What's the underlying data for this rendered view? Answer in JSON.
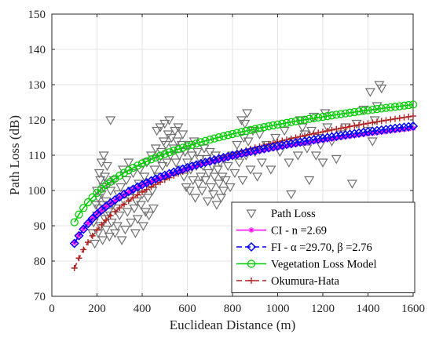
{
  "chart_data": {
    "type": "scatter",
    "xlabel": "Euclidean Distance (m)",
    "ylabel": "Path Loss (dB)",
    "xlim": [
      0,
      1600
    ],
    "ylim": [
      70,
      150
    ],
    "x_ticks": [
      "0",
      "200",
      "400",
      "600",
      "800",
      "1000",
      "1200",
      "1400",
      "1600"
    ],
    "y_ticks": [
      "70",
      "80",
      "90",
      "100",
      "110",
      "120",
      "130",
      "140",
      "150"
    ],
    "grid": true,
    "legend_position": "bottom-right",
    "series": [
      {
        "name": "Path Loss",
        "marker": "triangle-down",
        "color": "#707070",
        "points": [
          [
            180,
            88
          ],
          [
            185,
            91
          ],
          [
            190,
            85
          ],
          [
            195,
            96
          ],
          [
            200,
            93
          ],
          [
            200,
            100
          ],
          [
            205,
            88
          ],
          [
            205,
            98
          ],
          [
            210,
            105
          ],
          [
            210,
            95
          ],
          [
            215,
            103
          ],
          [
            215,
            90
          ],
          [
            220,
            108
          ],
          [
            220,
            99
          ],
          [
            225,
            86
          ],
          [
            225,
            96
          ],
          [
            230,
            110
          ],
          [
            230,
            101
          ],
          [
            235,
            92
          ],
          [
            235,
            104
          ],
          [
            240,
            89
          ],
          [
            240,
            97
          ],
          [
            245,
            107
          ],
          [
            245,
            93
          ],
          [
            250,
            94
          ],
          [
            250,
            102
          ],
          [
            255,
            87
          ],
          [
            260,
            120
          ],
          [
            260,
            100
          ],
          [
            265,
            91
          ],
          [
            270,
            96
          ],
          [
            275,
            103
          ],
          [
            280,
            88
          ],
          [
            285,
            95
          ],
          [
            290,
            90
          ],
          [
            295,
            99
          ],
          [
            300,
            93
          ],
          [
            305,
            101
          ],
          [
            310,
            86
          ],
          [
            315,
            106
          ],
          [
            320,
            97
          ],
          [
            325,
            89
          ],
          [
            330,
            103
          ],
          [
            335,
            94
          ],
          [
            340,
            108
          ],
          [
            345,
            98
          ],
          [
            350,
            91
          ],
          [
            355,
            100
          ],
          [
            360,
            105
          ],
          [
            365,
            95
          ],
          [
            370,
            88
          ],
          [
            375,
            97
          ],
          [
            380,
            92
          ],
          [
            385,
            102
          ],
          [
            390,
            106
          ],
          [
            395,
            96
          ],
          [
            400,
            99
          ],
          [
            405,
            90
          ],
          [
            410,
            104
          ],
          [
            415,
            94
          ],
          [
            420,
            108
          ],
          [
            425,
            98
          ],
          [
            430,
            93
          ],
          [
            435,
            102
          ],
          [
            440,
            110
          ],
          [
            445,
            100
          ],
          [
            450,
            95
          ],
          [
            455,
            106
          ],
          [
            460,
            112
          ],
          [
            465,
            117
          ],
          [
            470,
            104
          ],
          [
            475,
            109
          ],
          [
            480,
            118
          ],
          [
            485,
            111
          ],
          [
            490,
            107
          ],
          [
            495,
            114
          ],
          [
            500,
            119
          ],
          [
            505,
            113
          ],
          [
            510,
            108
          ],
          [
            515,
            116
          ],
          [
            520,
            120
          ],
          [
            525,
            110
          ],
          [
            530,
            115
          ],
          [
            540,
            112
          ],
          [
            545,
            117
          ],
          [
            550,
            108
          ],
          [
            555,
            114
          ],
          [
            560,
            118
          ],
          [
            565,
            110
          ],
          [
            570,
            106
          ],
          [
            575,
            113
          ],
          [
            580,
            116
          ],
          [
            585,
            104
          ],
          [
            590,
            111
          ],
          [
            595,
            101
          ],
          [
            600,
            108
          ],
          [
            605,
            113
          ],
          [
            610,
            100
          ],
          [
            615,
            106
          ],
          [
            620,
            110
          ],
          [
            625,
            103
          ],
          [
            630,
            114
          ],
          [
            635,
            98
          ],
          [
            640,
            107
          ],
          [
            645,
            111
          ],
          [
            650,
            102
          ],
          [
            655,
            109
          ],
          [
            660,
            104
          ],
          [
            665,
            100
          ],
          [
            670,
            107
          ],
          [
            675,
            112
          ],
          [
            680,
            103
          ],
          [
            685,
            109
          ],
          [
            690,
            97
          ],
          [
            695,
            105
          ],
          [
            700,
            111
          ],
          [
            705,
            101
          ],
          [
            710,
            107
          ],
          [
            715,
            99
          ],
          [
            720,
            104
          ],
          [
            725,
            110
          ],
          [
            730,
            96
          ],
          [
            735,
            106
          ],
          [
            740,
            102
          ],
          [
            745,
            108
          ],
          [
            750,
            98
          ],
          [
            755,
            104
          ],
          [
            760,
            100
          ],
          [
            765,
            109
          ],
          [
            770,
            103
          ],
          [
            780,
            107
          ],
          [
            790,
            101
          ],
          [
            800,
            110
          ],
          [
            810,
            105
          ],
          [
            820,
            113
          ],
          [
            830,
            108
          ],
          [
            840,
            120
          ],
          [
            845,
            103
          ],
          [
            850,
            115
          ],
          [
            855,
            119
          ],
          [
            860,
            110
          ],
          [
            865,
            122
          ],
          [
            870,
            114
          ],
          [
            880,
            106
          ],
          [
            890,
            117
          ],
          [
            900,
            111
          ],
          [
            910,
            104
          ],
          [
            920,
            116
          ],
          [
            930,
            108
          ],
          [
            950,
            113
          ],
          [
            970,
            106
          ],
          [
            990,
            115
          ],
          [
            1010,
            111
          ],
          [
            1030,
            117
          ],
          [
            1050,
            108
          ],
          [
            1060,
            99
          ],
          [
            1070,
            114
          ],
          [
            1090,
            110
          ],
          [
            1100,
            120
          ],
          [
            1110,
            118
          ],
          [
            1120,
            116
          ],
          [
            1130,
            112
          ],
          [
            1140,
            103
          ],
          [
            1150,
            117
          ],
          [
            1160,
            121
          ],
          [
            1170,
            110
          ],
          [
            1180,
            115
          ],
          [
            1190,
            113
          ],
          [
            1200,
            108
          ],
          [
            1210,
            122
          ],
          [
            1220,
            118
          ],
          [
            1240,
            114
          ],
          [
            1260,
            109
          ],
          [
            1280,
            116
          ],
          [
            1300,
            118
          ],
          [
            1330,
            102
          ],
          [
            1350,
            119
          ],
          [
            1380,
            123
          ],
          [
            1400,
            117
          ],
          [
            1410,
            128
          ],
          [
            1420,
            114
          ],
          [
            1430,
            120
          ],
          [
            1440,
            124
          ],
          [
            1450,
            130
          ],
          [
            1460,
            129
          ]
        ]
      },
      {
        "name": "CI - n =2.69",
        "marker": "asterisk",
        "color": "#ff00ff",
        "line": "solid",
        "model": {
          "type": "log",
          "a": 85.2,
          "b": 26.9,
          "x0": 100
        }
      },
      {
        "name": "FI - α =29.70, β =2.76",
        "marker": "diamond",
        "color": "#0000ff",
        "line": "dashed",
        "model": {
          "type": "log",
          "a": 85.0,
          "b": 27.6,
          "x0": 100
        }
      },
      {
        "name": "Vegetation Loss Model",
        "marker": "circle",
        "color": "#00cc00",
        "line": "solid",
        "model": {
          "type": "log",
          "a": 91.0,
          "b": 27.7,
          "x0": 100
        }
      },
      {
        "name": "Okumura-Hata",
        "marker": "plus",
        "color": "#b22222",
        "line": "dashed",
        "model": {
          "type": "log",
          "a": 78.0,
          "b": 35.8,
          "x0": 100
        }
      }
    ]
  }
}
